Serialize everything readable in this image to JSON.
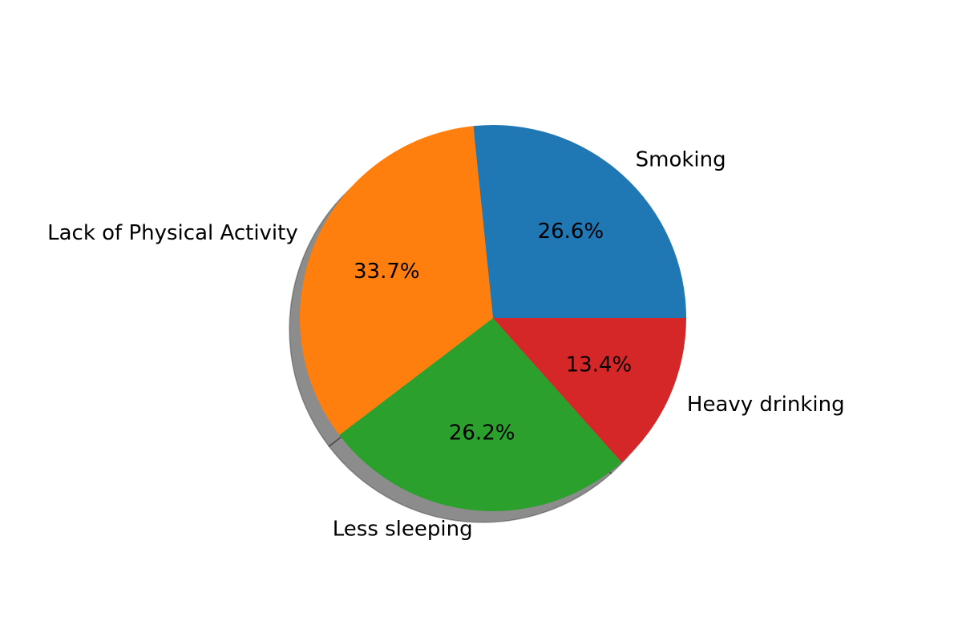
{
  "chart_data": {
    "type": "pie",
    "title": "",
    "categories": [
      "Smoking",
      "Lack of Physical Activity",
      "Less sleeping",
      "Heavy drinking"
    ],
    "values": [
      26.6,
      33.7,
      26.2,
      13.4
    ],
    "value_labels": [
      "26.6%",
      "33.7%",
      "26.2%",
      "13.4%"
    ],
    "colors": [
      "#1f77b4",
      "#ff7f0e",
      "#2ca02c",
      "#d62728"
    ],
    "start_angle_deg": 0,
    "direction": "counterclockwise",
    "shadow": true,
    "legend": false
  }
}
